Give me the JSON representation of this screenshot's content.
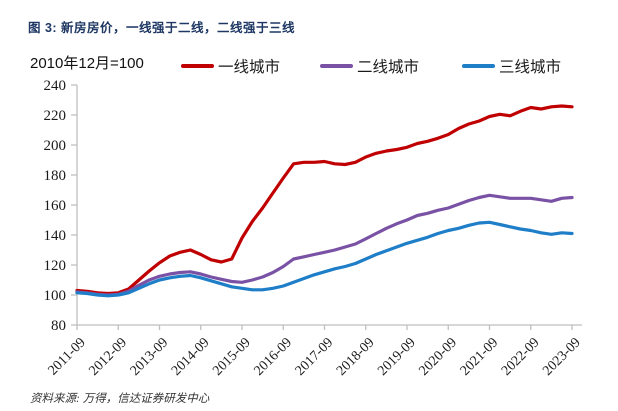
{
  "title": "图 3: 新房房价，一线强于二线，二线强于三线",
  "subtitle": "2010年12月=100",
  "source": "资料来源: 万得，信达证券研发中心",
  "colors": {
    "tier1": "#c00000",
    "tier2": "#7a52a5",
    "tier3": "#1e7ec8",
    "axis": "#bfbfbf",
    "title": "#1f3864"
  },
  "legend": {
    "items": [
      {
        "id": "tier1",
        "label": "一线城市",
        "color": "#c00000"
      },
      {
        "id": "tier2",
        "label": "二线城市",
        "color": "#7a52a5"
      },
      {
        "id": "tier3",
        "label": "三线城市",
        "color": "#1e7ec8"
      }
    ]
  },
  "chart_data": {
    "type": "line",
    "title": "图 3: 新房房价，一线强于二线，二线强于三线",
    "subtitle": "2010年12月=100",
    "xlabel": "",
    "ylabel": "",
    "grid": false,
    "legend_position": "top",
    "ylim": [
      80,
      240
    ],
    "y_ticks": [
      80,
      100,
      120,
      140,
      160,
      180,
      200,
      220,
      240
    ],
    "x_tick_labels": [
      "2011-09",
      "2012-09",
      "2013-09",
      "2014-09",
      "2015-09",
      "2016-09",
      "2017-09",
      "2018-09",
      "2019-09",
      "2020-09",
      "2021-09",
      "2022-09",
      "2023-09"
    ],
    "x": [
      "2011-09",
      "2011-12",
      "2012-03",
      "2012-06",
      "2012-09",
      "2012-12",
      "2013-03",
      "2013-06",
      "2013-09",
      "2013-12",
      "2014-03",
      "2014-06",
      "2014-09",
      "2014-12",
      "2015-03",
      "2015-06",
      "2015-09",
      "2015-12",
      "2016-03",
      "2016-06",
      "2016-09",
      "2016-12",
      "2017-03",
      "2017-06",
      "2017-09",
      "2017-12",
      "2018-03",
      "2018-06",
      "2018-09",
      "2018-12",
      "2019-03",
      "2019-06",
      "2019-09",
      "2019-12",
      "2020-03",
      "2020-06",
      "2020-09",
      "2020-12",
      "2021-03",
      "2021-06",
      "2021-09",
      "2021-12",
      "2022-03",
      "2022-06",
      "2022-09",
      "2022-12",
      "2023-03",
      "2023-06",
      "2023-09"
    ],
    "series": [
      {
        "id": "tier1",
        "name": "一线城市",
        "color": "#c00000",
        "values": [
          103,
          102.5,
          101.5,
          101,
          101.5,
          104,
          110,
          116,
          121.5,
          126,
          128.5,
          130,
          127,
          123.5,
          122,
          124,
          138,
          149,
          158,
          168,
          178,
          187.5,
          188.5,
          188.5,
          189,
          187.5,
          187,
          188.5,
          192,
          194.5,
          196,
          197,
          198.5,
          201,
          202.5,
          204.5,
          207,
          211,
          214,
          216,
          219,
          220.5,
          219.5,
          222.5,
          225,
          224,
          225.5,
          226,
          225.5
        ]
      },
      {
        "id": "tier2",
        "name": "二线城市",
        "color": "#7a52a5",
        "values": [
          102,
          101.5,
          100.5,
          100,
          100.5,
          102.5,
          106.5,
          110,
          112.5,
          114,
          115,
          115.5,
          114,
          112,
          110.5,
          109,
          108.5,
          110,
          112,
          115,
          119,
          124,
          125.5,
          127,
          128.5,
          130,
          132,
          134,
          137.5,
          141,
          144.5,
          147.5,
          150,
          153,
          154.5,
          156.5,
          158,
          160.5,
          163,
          165,
          166.5,
          165.5,
          164.5,
          164.5,
          164.5,
          163.5,
          162.5,
          164.5,
          165
        ]
      },
      {
        "id": "tier3",
        "name": "三线城市",
        "color": "#1e7ec8",
        "values": [
          101.5,
          101,
          100,
          99.5,
          100,
          101.5,
          104.5,
          107.5,
          110,
          111.5,
          112.5,
          113,
          111.5,
          109.5,
          107.5,
          105.5,
          104.5,
          103.5,
          103.5,
          104.5,
          106,
          108.5,
          111,
          113.5,
          115.5,
          117.5,
          119,
          121,
          124,
          127,
          129.5,
          132,
          134.5,
          136.5,
          138.5,
          141,
          143,
          144.5,
          146.5,
          148,
          148.5,
          147,
          145.5,
          144,
          143,
          141.5,
          140.5,
          141.5,
          141
        ]
      }
    ]
  }
}
